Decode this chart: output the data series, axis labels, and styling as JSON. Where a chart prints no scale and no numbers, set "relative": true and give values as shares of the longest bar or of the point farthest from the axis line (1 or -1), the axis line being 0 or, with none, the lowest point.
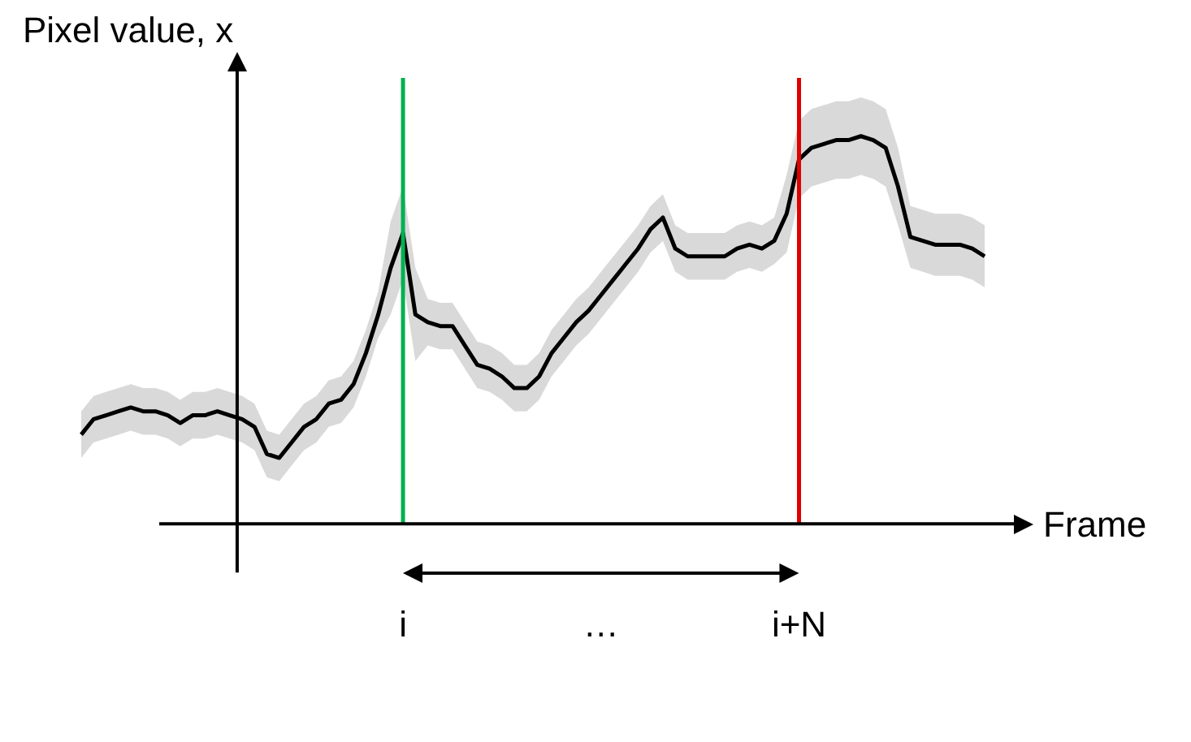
{
  "chart_data": {
    "type": "line",
    "relative": true,
    "ylabel": "Pixel value, x",
    "xlabel": "Frame",
    "categories": [
      null,
      null,
      null,
      null,
      null,
      null,
      null,
      null,
      null,
      null,
      null,
      null,
      null,
      null,
      null,
      null,
      null,
      null,
      null,
      null,
      null,
      null,
      null,
      null,
      null,
      null,
      "i",
      null,
      null,
      null,
      null,
      null,
      null,
      null,
      null,
      null,
      null,
      null,
      null,
      null,
      null,
      null,
      "…",
      null,
      null,
      null,
      null,
      null,
      null,
      null,
      null,
      null,
      null,
      null,
      null,
      null,
      null,
      null,
      "i+N",
      null,
      null,
      null,
      null,
      null,
      null,
      null,
      null,
      null,
      null,
      null,
      null,
      null,
      null,
      null
    ],
    "series": [
      {
        "color": "#000000",
        "values": [
          0.23,
          0.27,
          0.28,
          0.29,
          0.3,
          0.29,
          0.29,
          0.28,
          0.26,
          0.28,
          0.28,
          0.29,
          0.28,
          0.27,
          0.25,
          0.18,
          0.17,
          0.21,
          0.25,
          0.27,
          0.31,
          0.32,
          0.36,
          0.44,
          0.54,
          0.66,
          0.75,
          0.54,
          0.52,
          0.51,
          0.51,
          0.46,
          0.41,
          0.4,
          0.38,
          0.35,
          0.35,
          0.38,
          0.44,
          0.48,
          0.52,
          0.55,
          0.59,
          0.63,
          0.67,
          0.71,
          0.76,
          0.79,
          0.71,
          0.69,
          0.69,
          0.69,
          0.69,
          0.71,
          0.72,
          0.71,
          0.73,
          0.8,
          0.94,
          0.97,
          0.98,
          0.99,
          0.99,
          1,
          0.99,
          0.97,
          0.87,
          0.74,
          0.73,
          0.72,
          0.72,
          0.72,
          0.71,
          0.69
        ],
        "lower": [
          0.17,
          0.21,
          0.22,
          0.23,
          0.24,
          0.23,
          0.23,
          0.22,
          0.2,
          0.22,
          0.22,
          0.23,
          0.22,
          0.21,
          0.19,
          0.12,
          0.11,
          0.15,
          0.19,
          0.21,
          0.25,
          0.26,
          0.3,
          0.38,
          0.48,
          0.54,
          0.63,
          0.42,
          0.46,
          0.45,
          0.45,
          0.4,
          0.35,
          0.34,
          0.32,
          0.29,
          0.29,
          0.32,
          0.38,
          0.42,
          0.46,
          0.49,
          0.53,
          0.57,
          0.61,
          0.65,
          0.7,
          0.73,
          0.65,
          0.63,
          0.63,
          0.63,
          0.63,
          0.65,
          0.66,
          0.65,
          0.67,
          0.7,
          0.84,
          0.87,
          0.88,
          0.89,
          0.89,
          0.9,
          0.89,
          0.87,
          0.77,
          0.66,
          0.65,
          0.64,
          0.64,
          0.64,
          0.63,
          0.61
        ],
        "upper": [
          0.29,
          0.33,
          0.34,
          0.35,
          0.36,
          0.35,
          0.35,
          0.34,
          0.32,
          0.34,
          0.34,
          0.35,
          0.34,
          0.33,
          0.31,
          0.24,
          0.23,
          0.27,
          0.31,
          0.33,
          0.37,
          0.38,
          0.42,
          0.5,
          0.6,
          0.78,
          0.87,
          0.66,
          0.58,
          0.57,
          0.57,
          0.52,
          0.47,
          0.46,
          0.44,
          0.41,
          0.41,
          0.44,
          0.5,
          0.54,
          0.58,
          0.61,
          0.65,
          0.69,
          0.73,
          0.77,
          0.82,
          0.85,
          0.77,
          0.75,
          0.75,
          0.75,
          0.75,
          0.77,
          0.78,
          0.77,
          0.79,
          0.9,
          1.04,
          1.07,
          1.08,
          1.09,
          1.09,
          1.1,
          1.09,
          1.07,
          0.97,
          0.82,
          0.81,
          0.8,
          0.8,
          0.8,
          0.79,
          0.77
        ]
      }
    ],
    "ref_lines": [
      {
        "axis": "x",
        "value": "i",
        "color": "#00b050"
      },
      {
        "axis": "x",
        "value": "i+N",
        "color": "#e00000"
      }
    ]
  }
}
